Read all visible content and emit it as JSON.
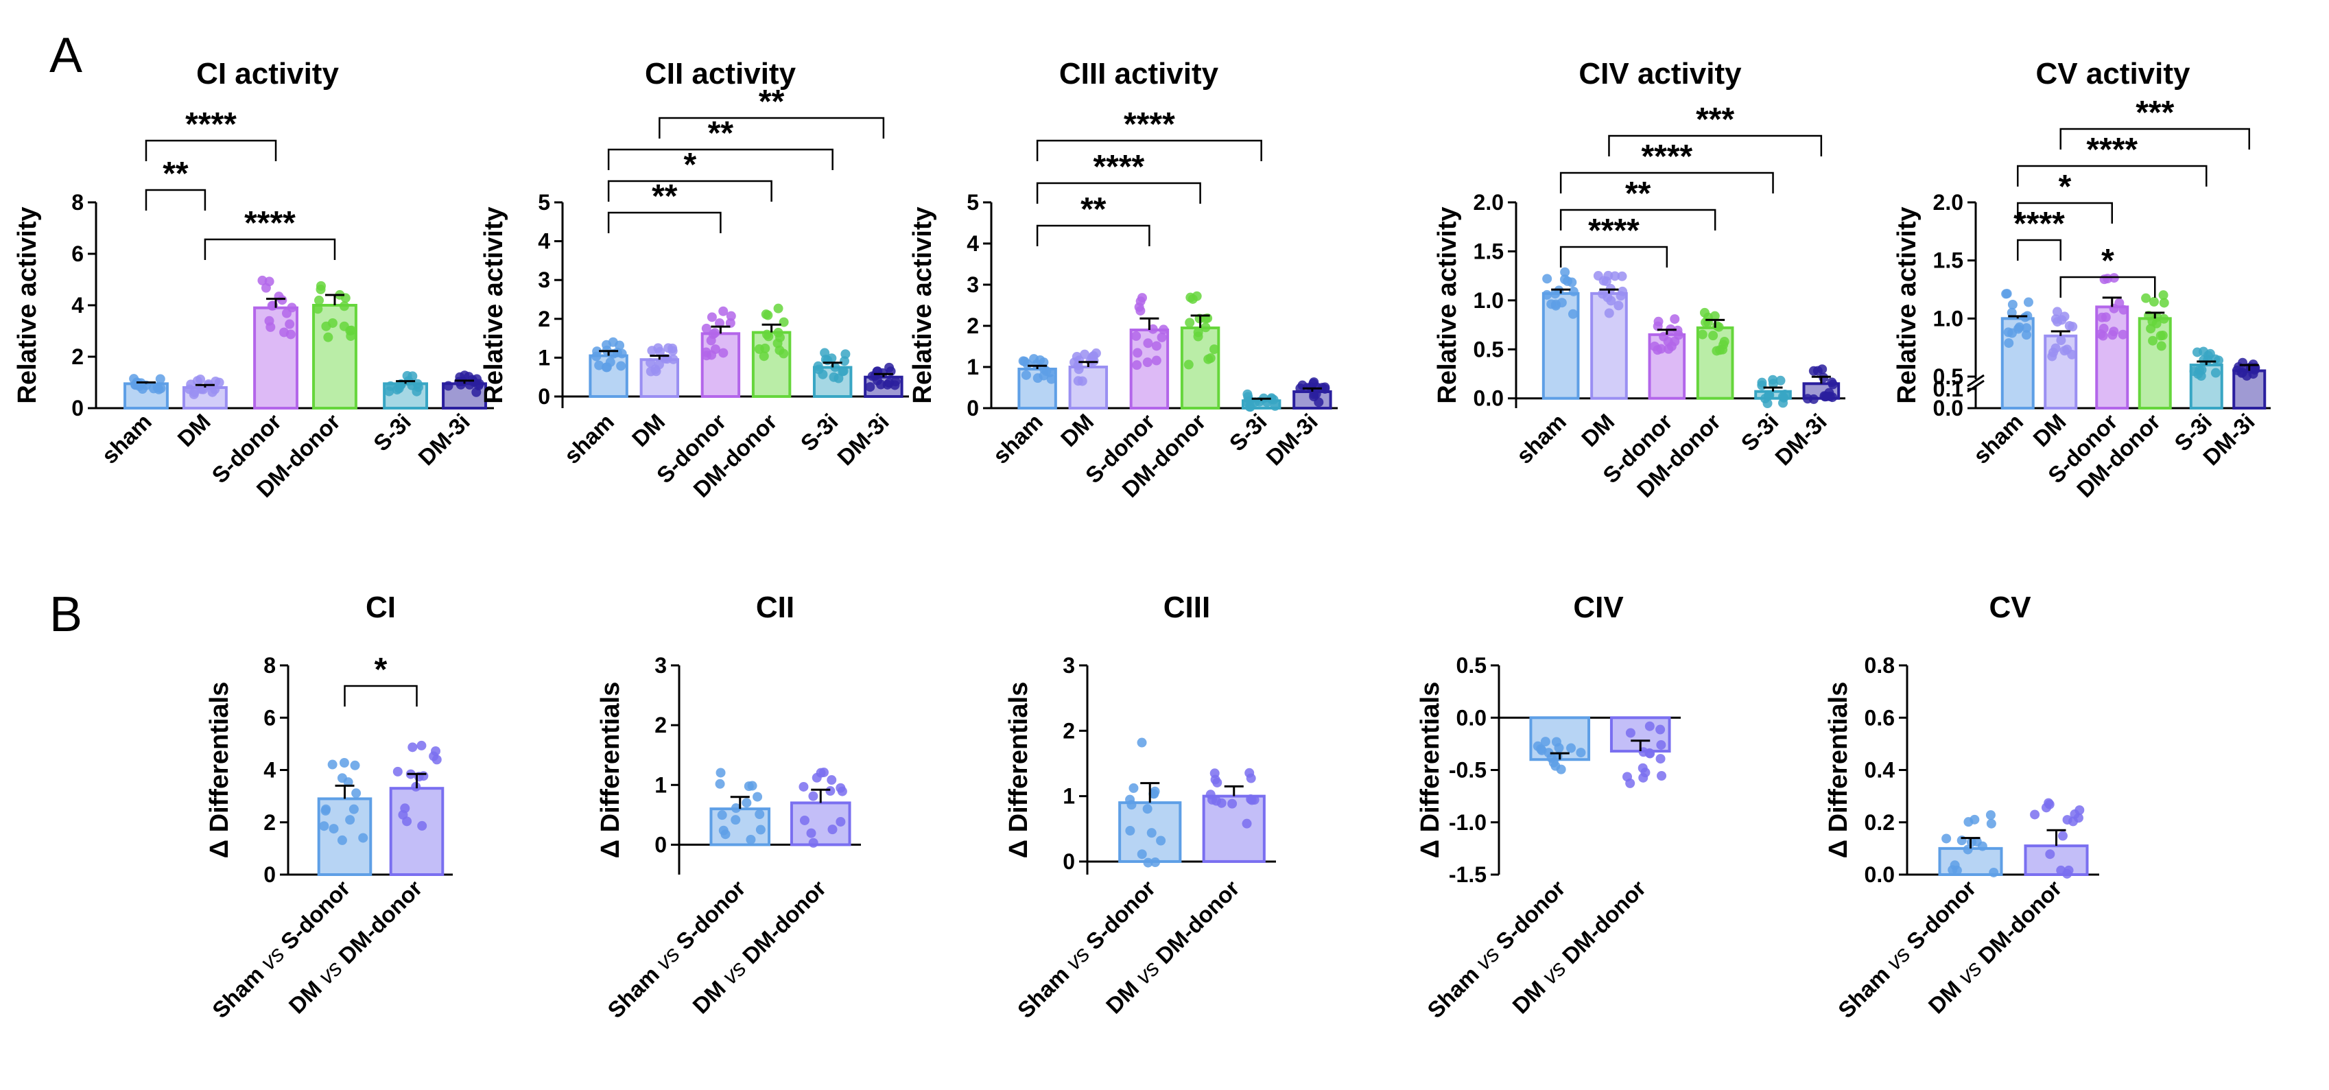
{
  "figure": {
    "panel_a_letter": "A",
    "panel_b_letter": "B"
  },
  "chart_data": [
    {
      "id": "a1",
      "type": "bar",
      "title": "CI activity",
      "ylabel": "Relative activity",
      "categories": [
        "sham",
        "DM",
        "S-donor",
        "DM-donor",
        "S-3i",
        "DM-3i"
      ],
      "values": [
        0.95,
        0.8,
        3.9,
        4.0,
        0.95,
        0.95
      ],
      "errors": [
        0.05,
        0.1,
        0.35,
        0.4,
        0.1,
        0.12
      ],
      "colors": [
        "#5e9fe6",
        "#9a8ff2",
        "#b366ea",
        "#66d63c",
        "#38a6c4",
        "#2a1f9e"
      ],
      "ylim": [
        0,
        8
      ],
      "yticks": [
        "0",
        "2",
        "4",
        "6",
        "8"
      ],
      "significance": [
        {
          "from": 0,
          "to": 2,
          "label": "****"
        },
        {
          "from": 0,
          "to": 1,
          "label": "**"
        },
        {
          "from": 1,
          "to": 3,
          "label": "****"
        }
      ]
    },
    {
      "id": "a2",
      "type": "bar",
      "title": "CII activity",
      "ylabel": "Relative activity",
      "categories": [
        "sham",
        "DM",
        "S-donor",
        "DM-donor",
        "S-3i",
        "DM-3i"
      ],
      "values": [
        1.05,
        0.95,
        1.62,
        1.65,
        0.75,
        0.5
      ],
      "errors": [
        0.12,
        0.1,
        0.18,
        0.2,
        0.12,
        0.08
      ],
      "colors": [
        "#5e9fe6",
        "#9a8ff2",
        "#b366ea",
        "#66d63c",
        "#38a6c4",
        "#2a1f9e"
      ],
      "ylim": [
        -0.3,
        5
      ],
      "yticks": [
        "0",
        "1",
        "2",
        "3",
        "4",
        "5"
      ],
      "significance": [
        {
          "from": 1,
          "to": 5,
          "label": "**"
        },
        {
          "from": 0,
          "to": 4,
          "label": "**"
        },
        {
          "from": 0,
          "to": 3,
          "label": "*"
        },
        {
          "from": 0,
          "to": 2,
          "label": "**"
        }
      ]
    },
    {
      "id": "a3",
      "type": "bar",
      "title": "CIII activity",
      "ylabel": "Relative activity",
      "categories": [
        "sham",
        "DM",
        "S-donor",
        "DM-donor",
        "S-3i",
        "DM-3i"
      ],
      "values": [
        0.95,
        1.0,
        1.9,
        1.95,
        0.18,
        0.4
      ],
      "errors": [
        0.08,
        0.12,
        0.28,
        0.3,
        0.05,
        0.08
      ],
      "colors": [
        "#5e9fe6",
        "#9a8ff2",
        "#b366ea",
        "#66d63c",
        "#38a6c4",
        "#2a1f9e"
      ],
      "ylim": [
        0,
        5
      ],
      "yticks": [
        "0",
        "1",
        "2",
        "3",
        "4",
        "5"
      ],
      "significance": [
        {
          "from": 0,
          "to": 4,
          "label": "****"
        },
        {
          "from": 0,
          "to": 3,
          "label": "****"
        },
        {
          "from": 0,
          "to": 2,
          "label": "**"
        }
      ]
    },
    {
      "id": "a4",
      "type": "bar",
      "title": "CIV activity",
      "ylabel": "Relative activity",
      "categories": [
        "sham",
        "DM",
        "S-donor",
        "DM-donor",
        "S-3i",
        "DM-3i"
      ],
      "values": [
        1.07,
        1.07,
        0.65,
        0.72,
        0.07,
        0.15
      ],
      "errors": [
        0.04,
        0.04,
        0.05,
        0.08,
        0.04,
        0.07
      ],
      "colors": [
        "#5e9fe6",
        "#9a8ff2",
        "#b366ea",
        "#66d63c",
        "#38a6c4",
        "#2a1f9e"
      ],
      "ylim": [
        -0.1,
        2.0
      ],
      "yticks": [
        "0.0",
        "0.5",
        "1.0",
        "1.5",
        "2.0"
      ],
      "significance": [
        {
          "from": 1,
          "to": 5,
          "label": "***"
        },
        {
          "from": 0,
          "to": 4,
          "label": "****"
        },
        {
          "from": 0,
          "to": 3,
          "label": "**"
        },
        {
          "from": 0,
          "to": 2,
          "label": "****"
        }
      ]
    },
    {
      "id": "a5",
      "type": "bar",
      "title": "CV activity",
      "ylabel": "Relative activity",
      "broken_axis": true,
      "categories": [
        "sham",
        "DM",
        "S-donor",
        "DM-donor",
        "S-3i",
        "DM-3i"
      ],
      "values": [
        1.0,
        0.85,
        1.1,
        1.0,
        0.6,
        0.55
      ],
      "errors": [
        0.02,
        0.04,
        0.08,
        0.05,
        0.03,
        0.05
      ],
      "colors": [
        "#5e9fe6",
        "#9a8ff2",
        "#b366ea",
        "#66d63c",
        "#38a6c4",
        "#2a1f9e"
      ],
      "ylim": [
        0,
        2.0
      ],
      "yticks": [
        "0.0",
        "0.1",
        "0.5",
        "1.0",
        "1.5",
        "2.0"
      ],
      "significance": [
        {
          "from": 1,
          "to": 5,
          "label": "***"
        },
        {
          "from": 0,
          "to": 4,
          "label": "****"
        },
        {
          "from": 0,
          "to": 2,
          "label": "*"
        },
        {
          "from": 0,
          "to": 1,
          "label": "****"
        },
        {
          "from": 1,
          "to": 3,
          "label": "*"
        }
      ]
    },
    {
      "id": "b1",
      "type": "bar",
      "title": "CI",
      "ylabel": "Δ Differentials",
      "categories": [
        {
          "a": "Sham",
          "vs": "vs",
          "b": "S-donor"
        },
        {
          "a": "DM",
          "vs": "vs",
          "b": "DM-donor"
        }
      ],
      "values": [
        2.9,
        3.3
      ],
      "errors": [
        0.5,
        0.55
      ],
      "colors": [
        "#5e9fe6",
        "#7a6ff0"
      ],
      "ylim": [
        0,
        8
      ],
      "yticks": [
        "0",
        "2",
        "4",
        "6",
        "8"
      ],
      "significance": [
        {
          "from": 0,
          "to": 1,
          "label": "*"
        }
      ]
    },
    {
      "id": "b2",
      "type": "bar",
      "title": "CII",
      "ylabel": "Δ Differentials",
      "categories": [
        {
          "a": "Sham",
          "vs": "vs",
          "b": "S-donor"
        },
        {
          "a": "DM",
          "vs": "vs",
          "b": "DM-donor"
        }
      ],
      "values": [
        0.6,
        0.7
      ],
      "errors": [
        0.2,
        0.22
      ],
      "colors": [
        "#5e9fe6",
        "#7a6ff0"
      ],
      "ylim": [
        -0.5,
        3
      ],
      "yticks": [
        "0",
        "1",
        "2",
        "3"
      ],
      "significance": []
    },
    {
      "id": "b3",
      "type": "bar",
      "title": "CIII",
      "ylabel": "Δ Differentials",
      "categories": [
        {
          "a": "Sham",
          "vs": "vs",
          "b": "S-donor"
        },
        {
          "a": "DM",
          "vs": "vs",
          "b": "DM-donor"
        }
      ],
      "values": [
        0.9,
        1.0
      ],
      "errors": [
        0.3,
        0.15
      ],
      "colors": [
        "#5e9fe6",
        "#7a6ff0"
      ],
      "ylim": [
        -0.2,
        3
      ],
      "yticks": [
        "0",
        "1",
        "2",
        "3"
      ],
      "significance": []
    },
    {
      "id": "b4",
      "type": "bar",
      "title": "CIV",
      "ylabel": "Δ Differentials",
      "categories": [
        {
          "a": "Sham",
          "vs": "vs",
          "b": "S-donor"
        },
        {
          "a": "DM",
          "vs": "vs",
          "b": "DM-donor"
        }
      ],
      "values": [
        -0.4,
        -0.32
      ],
      "errors": [
        0.06,
        0.1
      ],
      "colors": [
        "#5e9fe6",
        "#7a6ff0"
      ],
      "ylim": [
        -1.5,
        0.5
      ],
      "yticks": [
        "-1.5",
        "-1.0",
        "-0.5",
        "0.0",
        "0.5"
      ],
      "significance": []
    },
    {
      "id": "b5",
      "type": "bar",
      "title": "CV",
      "ylabel": "Δ Differentials",
      "categories": [
        {
          "a": "Sham",
          "vs": "vs",
          "b": "S-donor"
        },
        {
          "a": "DM",
          "vs": "vs",
          "b": "DM-donor"
        }
      ],
      "values": [
        0.1,
        0.11
      ],
      "errors": [
        0.04,
        0.06
      ],
      "colors": [
        "#5e9fe6",
        "#7a6ff0"
      ],
      "ylim": [
        0,
        0.8
      ],
      "yticks": [
        "0.0",
        "0.2",
        "0.4",
        "0.6",
        "0.8"
      ],
      "significance": []
    }
  ]
}
